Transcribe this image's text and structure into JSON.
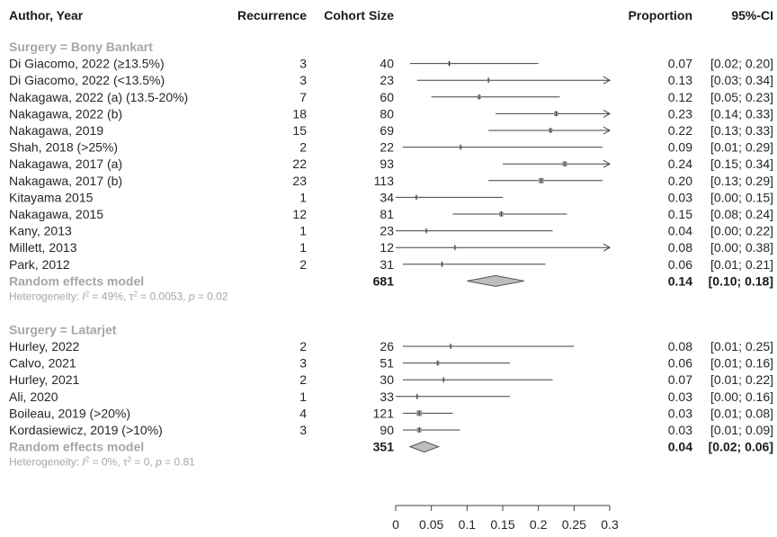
{
  "header": {
    "study": "Author, Year",
    "events": "Recurrence",
    "total": "Cohort Size",
    "proportion": "Proportion",
    "ci": "95%-CI"
  },
  "chart_data": {
    "type": "forest",
    "xlim": [
      0,
      0.3
    ],
    "x_ticks": [
      0,
      0.05,
      0.1,
      0.15,
      0.2,
      0.25,
      0.3
    ],
    "x_tick_labels": [
      "0",
      "0.05",
      "0.1",
      "0.15",
      "0.2",
      "0.25",
      "0.3"
    ],
    "groups": [
      {
        "label": "Surgery = Bony Bankart",
        "studies": [
          {
            "study": "Di Giacomo, 2022 (≥13.5%)",
            "events": "3",
            "total": "40",
            "est": 0.075,
            "lo": 0.02,
            "hi": 0.2,
            "prop_text": "0.07",
            "ci_text": "[0.02; 0.20]"
          },
          {
            "study": "Di Giacomo, 2022 (<13.5%)",
            "events": "3",
            "total": "23",
            "est": 0.13,
            "lo": 0.03,
            "hi": 0.34,
            "prop_text": "0.13",
            "ci_text": "[0.03; 0.34]"
          },
          {
            "study": "Nakagawa, 2022 (a) (13.5-20%)",
            "events": "7",
            "total": "60",
            "est": 0.117,
            "lo": 0.05,
            "hi": 0.23,
            "prop_text": "0.12",
            "ci_text": "[0.05; 0.23]"
          },
          {
            "study": "Nakagawa, 2022 (b)",
            "events": "18",
            "total": "80",
            "est": 0.225,
            "lo": 0.14,
            "hi": 0.33,
            "prop_text": "0.23",
            "ci_text": "[0.14; 0.33]"
          },
          {
            "study": "Nakagawa, 2019",
            "events": "15",
            "total": "69",
            "est": 0.217,
            "lo": 0.13,
            "hi": 0.33,
            "prop_text": "0.22",
            "ci_text": "[0.13; 0.33]"
          },
          {
            "study": "Shah, 2018 (>25%)",
            "events": "2",
            "total": "22",
            "est": 0.091,
            "lo": 0.01,
            "hi": 0.29,
            "prop_text": "0.09",
            "ci_text": "[0.01; 0.29]"
          },
          {
            "study": "Nakagawa, 2017 (a)",
            "events": "22",
            "total": "93",
            "est": 0.237,
            "lo": 0.15,
            "hi": 0.34,
            "prop_text": "0.24",
            "ci_text": "[0.15; 0.34]"
          },
          {
            "study": "Nakagawa, 2017 (b)",
            "events": "23",
            "total": "113",
            "est": 0.204,
            "lo": 0.13,
            "hi": 0.29,
            "prop_text": "0.20",
            "ci_text": "[0.13; 0.29]"
          },
          {
            "study": "Kitayama 2015",
            "events": "1",
            "total": "34",
            "est": 0.029,
            "lo": 0.0,
            "hi": 0.15,
            "prop_text": "0.03",
            "ci_text": "[0.00; 0.15]"
          },
          {
            "study": "Nakagawa, 2015",
            "events": "12",
            "total": "81",
            "est": 0.148,
            "lo": 0.08,
            "hi": 0.24,
            "prop_text": "0.15",
            "ci_text": "[0.08; 0.24]"
          },
          {
            "study": "Kany, 2013",
            "events": "1",
            "total": "23",
            "est": 0.043,
            "lo": 0.0,
            "hi": 0.22,
            "prop_text": "0.04",
            "ci_text": "[0.00; 0.22]"
          },
          {
            "study": "Millett, 2013",
            "events": "1",
            "total": "12",
            "est": 0.083,
            "lo": 0.0,
            "hi": 0.38,
            "prop_text": "0.08",
            "ci_text": "[0.00; 0.38]"
          },
          {
            "study": "Park, 2012",
            "events": "2",
            "total": "31",
            "est": 0.065,
            "lo": 0.01,
            "hi": 0.21,
            "prop_text": "0.06",
            "ci_text": "[0.01; 0.21]"
          }
        ],
        "summary": {
          "label": "Random effects model",
          "total": "681",
          "est": 0.14,
          "lo": 0.1,
          "hi": 0.18,
          "prop_text": "0.14",
          "ci_text": "[0.10; 0.18]"
        },
        "heterogeneity": {
          "prefix": "Heterogeneity: ",
          "i2_label": "I",
          "i2_value": " = 49%, ",
          "tau_label": "τ",
          "tau_value": " = 0.0053, ",
          "p_label": "p",
          "p_value": " = 0.02"
        }
      },
      {
        "label": "Surgery = Latarjet",
        "studies": [
          {
            "study": "Hurley, 2022",
            "events": "2",
            "total": "26",
            "est": 0.077,
            "lo": 0.01,
            "hi": 0.25,
            "prop_text": "0.08",
            "ci_text": "[0.01; 0.25]"
          },
          {
            "study": "Calvo, 2021",
            "events": "3",
            "total": "51",
            "est": 0.059,
            "lo": 0.01,
            "hi": 0.16,
            "prop_text": "0.06",
            "ci_text": "[0.01; 0.16]"
          },
          {
            "study": "Hurley, 2021",
            "events": "2",
            "total": "30",
            "est": 0.067,
            "lo": 0.01,
            "hi": 0.22,
            "prop_text": "0.07",
            "ci_text": "[0.01; 0.22]"
          },
          {
            "study": "Ali, 2020",
            "events": "1",
            "total": "33",
            "est": 0.03,
            "lo": 0.0,
            "hi": 0.16,
            "prop_text": "0.03",
            "ci_text": "[0.00; 0.16]"
          },
          {
            "study": "Boileau, 2019 (>20%)",
            "events": "4",
            "total": "121",
            "est": 0.033,
            "lo": 0.01,
            "hi": 0.08,
            "prop_text": "0.03",
            "ci_text": "[0.01; 0.08]"
          },
          {
            "study": "Kordasiewicz, 2019 (>10%)",
            "events": "3",
            "total": "90",
            "est": 0.033,
            "lo": 0.01,
            "hi": 0.09,
            "prop_text": "0.03",
            "ci_text": "[0.01; 0.09]"
          }
        ],
        "summary": {
          "label": "Random effects model",
          "total": "351",
          "est": 0.04,
          "lo": 0.02,
          "hi": 0.06,
          "prop_text": "0.04",
          "ci_text": "[0.02; 0.06]"
        },
        "heterogeneity": {
          "prefix": "Heterogeneity: ",
          "i2_label": "I",
          "i2_value": " = 0%, ",
          "tau_label": "τ",
          "tau_value": " = 0, ",
          "p_label": "p",
          "p_value": " = 0.81"
        }
      }
    ],
    "colors": {
      "marker": "#999999",
      "line": "#404040",
      "diamond_fill": "#bdbdbd",
      "diamond_stroke": "#555555",
      "muted_text": "#a6a6a6"
    }
  }
}
